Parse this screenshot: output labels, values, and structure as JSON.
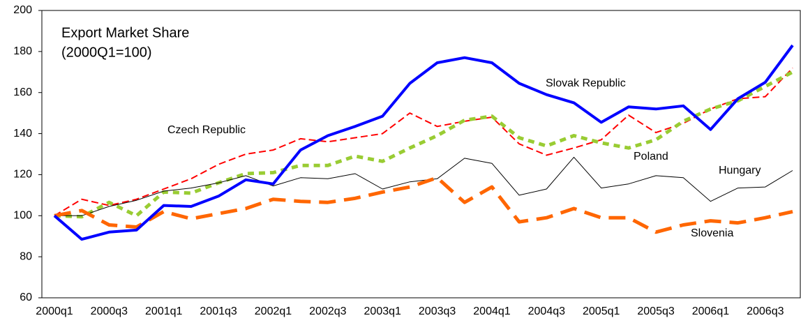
{
  "chart_data": {
    "type": "line",
    "title": "Export Market Share",
    "subtitle": "(2000Q1=100)",
    "categories": [
      "2000q1",
      null,
      "2000q3",
      null,
      "2001q1",
      null,
      "2001q3",
      null,
      "2002q1",
      null,
      "2002q3",
      null,
      "2003q1",
      null,
      "2003q3",
      null,
      "2004q1",
      null,
      "2004q3",
      null,
      "2005q1",
      null,
      "2005q3",
      null,
      "2006q1",
      null,
      "2006q3",
      null
    ],
    "ylim": [
      60,
      200
    ],
    "yticks": [
      60,
      80,
      100,
      120,
      140,
      160,
      180,
      200
    ],
    "grid": false,
    "series": [
      {
        "name": "Czech Republic",
        "color": "#ff0000",
        "style": "dashed",
        "values": [
          100,
          108,
          105,
          108,
          113,
          118,
          125,
          130,
          132,
          137.5,
          136,
          138,
          140,
          150,
          143.5,
          146,
          148,
          135,
          129.5,
          133,
          137,
          149,
          140.5,
          145,
          152,
          157,
          158,
          172
        ]
      },
      {
        "name": "Poland",
        "color": "#99cc33",
        "style": "dotted",
        "values": [
          100,
          99.5,
          106.5,
          100,
          111.5,
          111,
          116,
          120.5,
          121,
          124.5,
          124.5,
          129,
          126.5,
          133,
          139,
          146.5,
          148.5,
          138,
          134,
          139,
          135.5,
          133,
          137,
          146,
          152,
          156,
          163,
          170
        ]
      },
      {
        "name": "Hungary",
        "color": "#000000",
        "style": "thin",
        "values": [
          100,
          100,
          104.5,
          107.5,
          112,
          113.5,
          116,
          119.5,
          114.5,
          118.5,
          118,
          120.5,
          113,
          116.5,
          118,
          128,
          125.5,
          110,
          113,
          128.5,
          113.5,
          115.5,
          119.5,
          118.5,
          107,
          113.5,
          114,
          122
        ]
      },
      {
        "name": "Slovenia",
        "color": "#ff6600",
        "style": "long-dashed",
        "values": [
          100,
          102.5,
          95.5,
          94.5,
          102,
          98.5,
          101,
          103.5,
          108,
          107,
          106.5,
          108.5,
          111.5,
          114,
          118.5,
          106.5,
          114,
          97,
          99,
          103.5,
          99,
          99,
          92,
          95.5,
          97.5,
          96.5,
          99,
          102
        ]
      },
      {
        "name": "Slovak Republic",
        "color": "#0000ff",
        "style": "thick",
        "values": [
          100,
          88.5,
          92,
          93,
          105,
          104.5,
          109.5,
          117.5,
          115.5,
          132,
          139,
          143.5,
          148.5,
          164.5,
          174.5,
          177,
          174.5,
          164.5,
          159,
          155,
          145.5,
          153,
          152,
          153.5,
          142,
          157,
          165,
          183
        ]
      }
    ]
  }
}
